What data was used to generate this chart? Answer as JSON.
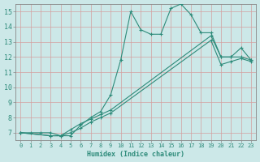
{
  "xlabel": "Humidex (Indice chaleur)",
  "ylabel": "",
  "bg_color": "#cce8e8",
  "line_color": "#2e8b7a",
  "grid_color": "#b0d0d0",
  "xlim": [
    -0.5,
    23.5
  ],
  "ylim": [
    6.5,
    15.5
  ],
  "xticks": [
    0,
    1,
    2,
    3,
    4,
    5,
    6,
    7,
    8,
    9,
    10,
    11,
    12,
    13,
    14,
    15,
    16,
    17,
    18,
    19,
    20,
    21,
    22,
    23
  ],
  "yticks": [
    7,
    8,
    9,
    10,
    11,
    12,
    13,
    14,
    15
  ],
  "line1_x": [
    0,
    1,
    2,
    3,
    4,
    5,
    6,
    7,
    8,
    9,
    10,
    11,
    12,
    13,
    14,
    15,
    16,
    17,
    18,
    19,
    20,
    21,
    22,
    23
  ],
  "line1_y": [
    7.0,
    7.0,
    7.0,
    7.0,
    6.8,
    6.8,
    7.5,
    8.0,
    8.4,
    9.5,
    11.8,
    15.0,
    13.8,
    13.5,
    13.5,
    15.2,
    15.5,
    14.8,
    13.6,
    13.6,
    12.0,
    12.0,
    12.6,
    11.8
  ],
  "line2_x": [
    0,
    3,
    4,
    5,
    6,
    7,
    8,
    9,
    19,
    20,
    21,
    22,
    23
  ],
  "line2_y": [
    7.0,
    6.8,
    6.8,
    7.2,
    7.6,
    7.9,
    8.2,
    8.5,
    13.4,
    12.0,
    12.0,
    12.0,
    11.8
  ],
  "line3_x": [
    0,
    3,
    4,
    5,
    6,
    7,
    8,
    9,
    19,
    20,
    21,
    22,
    23
  ],
  "line3_y": [
    7.0,
    6.8,
    6.8,
    7.0,
    7.3,
    7.7,
    8.0,
    8.3,
    13.1,
    11.5,
    11.7,
    11.9,
    11.7
  ]
}
